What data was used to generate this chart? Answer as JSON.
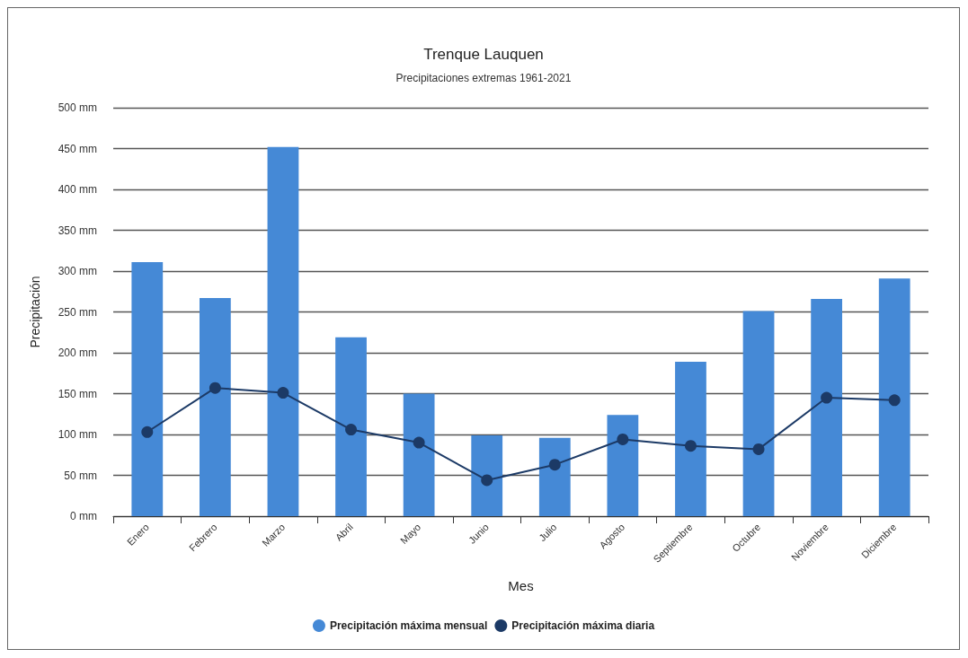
{
  "chart_data": {
    "type": "bar",
    "title": "Trenque Lauquen",
    "subtitle": "Precipitaciones extremas 1961-2021",
    "xlabel": "Mes",
    "ylabel": "Precipitación",
    "categories": [
      "Enero",
      "Febrero",
      "Marzo",
      "Abril",
      "Mayo",
      "Junio",
      "Julio",
      "Agosto",
      "Septiembre",
      "Octubre",
      "Noviembre",
      "Diciembre"
    ],
    "series": [
      {
        "name": "Precipitación máxima mensual",
        "color": "#4589d6",
        "values": [
          311,
          267,
          452,
          219,
          150,
          99,
          96,
          124,
          189,
          251,
          266,
          291
        ]
      },
      {
        "name": "Precipitación máxima diaria",
        "type": "line",
        "color": "#1c3a66",
        "values": [
          103,
          157,
          151,
          106,
          90,
          44,
          63,
          94,
          86,
          82,
          145,
          142
        ]
      }
    ],
    "ylim": [
      0,
      500
    ],
    "yticks": [
      {
        "value": 0,
        "label": "0 mm"
      },
      {
        "value": 50,
        "label": "50 mm"
      },
      {
        "value": 100,
        "label": "100 mm"
      },
      {
        "value": 150,
        "label": "150 mm"
      },
      {
        "value": 200,
        "label": "200 mm"
      },
      {
        "value": 250,
        "label": "250 mm"
      },
      {
        "value": 300,
        "label": "300 mm"
      },
      {
        "value": 350,
        "label": "350 mm"
      },
      {
        "value": 400,
        "label": "400 mm"
      },
      {
        "value": 450,
        "label": "450 mm"
      },
      {
        "value": 500,
        "label": "500 mm"
      }
    ],
    "grid": "y",
    "legend": "bottom",
    "marker": "circle"
  }
}
